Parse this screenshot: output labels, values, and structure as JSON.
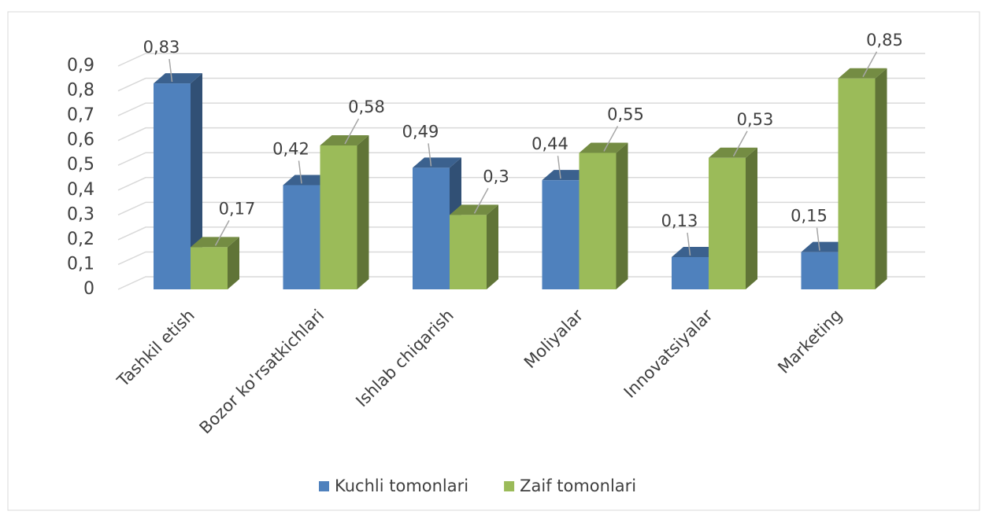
{
  "chart_data": {
    "type": "bar3d",
    "categories": [
      "Tashkil etish",
      "Bozor ko'rsatkichlari",
      "Ishlab chiqarish",
      "Moliyalar",
      "Innovatsiyalar",
      "Marketing"
    ],
    "series": [
      {
        "name": "Kuchli tomonlari",
        "color": "#4f81bd",
        "values": [
          0.83,
          0.42,
          0.49,
          0.44,
          0.13,
          0.15
        ],
        "value_labels": [
          "0,83",
          "0,42",
          "0,49",
          "0,44",
          "0,13",
          "0,15"
        ]
      },
      {
        "name": "Zaif tomonlari",
        "color": "#9bbb59",
        "values": [
          0.17,
          0.58,
          0.3,
          0.55,
          0.53,
          0.85
        ],
        "value_labels": [
          "0,17",
          "0,58",
          "0,3",
          "0,55",
          "0,53",
          "0,85"
        ]
      }
    ],
    "ylim": [
      0,
      0.9
    ],
    "yticks": [
      0,
      {
        "value": 0.1,
        "label": "0,1"
      },
      {
        "value": 0.2,
        "label": "0,2"
      },
      {
        "value": 0.3,
        "label": "0,3"
      },
      {
        "value": 0.4,
        "label": "0,4"
      },
      {
        "value": 0.5,
        "label": "0,5"
      },
      {
        "value": 0.6,
        "label": "0,6"
      },
      {
        "value": 0.7,
        "label": "0,7"
      },
      {
        "value": 0.8,
        "label": "0,8"
      },
      {
        "value": 0.9,
        "label": "0,9"
      }
    ],
    "grid": true,
    "legend": "bottom"
  }
}
